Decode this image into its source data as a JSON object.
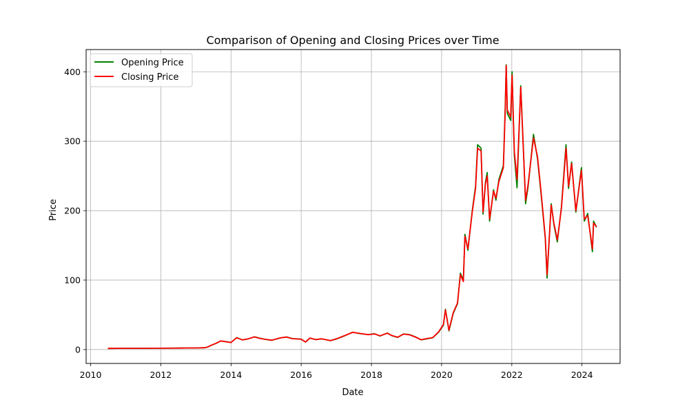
{
  "chart_data": {
    "type": "line",
    "title": "Comparison of Opening and Closing Prices over Time",
    "xlabel": "Date",
    "ylabel": "Price",
    "xlim": [
      "2009-11-15",
      "2025-02-01"
    ],
    "ylim": [
      -20,
      432
    ],
    "x_ticks": [
      "2010",
      "2012",
      "2014",
      "2016",
      "2018",
      "2020",
      "2022",
      "2024"
    ],
    "y_ticks": [
      0,
      100,
      200,
      300,
      400
    ],
    "grid": true,
    "legend": "upper-left",
    "colors": {
      "open": "#008000",
      "close": "#ff0000",
      "grid": "#b0b0b0"
    },
    "series": [
      {
        "name": "Opening Price",
        "points": [
          [
            "2010-06-29",
            1.6
          ],
          [
            "2010-12-31",
            1.8
          ],
          [
            "2011-06-30",
            1.8
          ],
          [
            "2011-12-30",
            1.9
          ],
          [
            "2012-06-29",
            2.1
          ],
          [
            "2012-12-31",
            2.3
          ],
          [
            "2013-03-31",
            2.6
          ],
          [
            "2013-05-01",
            3.5
          ],
          [
            "2013-06-15",
            6.5
          ],
          [
            "2013-08-01",
            9.0
          ],
          [
            "2013-09-15",
            12.3
          ],
          [
            "2013-11-01",
            11.5
          ],
          [
            "2014-01-01",
            10.2
          ],
          [
            "2014-03-01",
            17.2
          ],
          [
            "2014-05-01",
            13.8
          ],
          [
            "2014-07-01",
            15.5
          ],
          [
            "2014-09-01",
            18.4
          ],
          [
            "2014-11-01",
            16.2
          ],
          [
            "2015-01-01",
            14.5
          ],
          [
            "2015-03-01",
            13.4
          ],
          [
            "2015-06-01",
            16.8
          ],
          [
            "2015-08-01",
            18.2
          ],
          [
            "2015-10-01",
            15.8
          ],
          [
            "2016-01-01",
            15.0
          ],
          [
            "2016-02-15",
            10.8
          ],
          [
            "2016-04-01",
            16.5
          ],
          [
            "2016-06-01",
            14.4
          ],
          [
            "2016-08-01",
            15.4
          ],
          [
            "2016-11-01",
            12.8
          ],
          [
            "2017-01-01",
            15.2
          ],
          [
            "2017-04-01",
            20.0
          ],
          [
            "2017-06-20",
            25.0
          ],
          [
            "2017-09-01",
            23.0
          ],
          [
            "2017-12-01",
            21.5
          ],
          [
            "2018-02-01",
            22.8
          ],
          [
            "2018-04-01",
            19.5
          ],
          [
            "2018-06-15",
            23.8
          ],
          [
            "2018-08-01",
            20.0
          ],
          [
            "2018-10-01",
            17.5
          ],
          [
            "2018-12-01",
            22.5
          ],
          [
            "2019-02-01",
            21.5
          ],
          [
            "2019-04-01",
            18.5
          ],
          [
            "2019-06-01",
            14.0
          ],
          [
            "2019-08-01",
            15.5
          ],
          [
            "2019-10-01",
            17.0
          ],
          [
            "2019-12-01",
            25.0
          ],
          [
            "2020-01-20",
            35.0
          ],
          [
            "2020-02-10",
            58.0
          ],
          [
            "2020-03-18",
            27.0
          ],
          [
            "2020-05-01",
            52.0
          ],
          [
            "2020-06-15",
            66.0
          ],
          [
            "2020-07-15",
            110.0
          ],
          [
            "2020-08-15",
            100.0
          ],
          [
            "2020-08-31",
            166.0
          ],
          [
            "2020-10-01",
            143.0
          ],
          [
            "2020-11-15",
            200.0
          ],
          [
            "2020-12-20",
            235.0
          ],
          [
            "2021-01-10",
            295.0
          ],
          [
            "2021-02-15",
            290.0
          ],
          [
            "2021-03-08",
            195.0
          ],
          [
            "2021-04-01",
            240.0
          ],
          [
            "2021-04-20",
            255.0
          ],
          [
            "2021-05-15",
            185.0
          ],
          [
            "2021-06-25",
            230.0
          ],
          [
            "2021-07-20",
            215.0
          ],
          [
            "2021-08-20",
            245.0
          ],
          [
            "2021-10-05",
            265.0
          ],
          [
            "2021-10-25",
            350.0
          ],
          [
            "2021-11-04",
            410.0
          ],
          [
            "2021-11-15",
            340.0
          ],
          [
            "2021-12-20",
            330.0
          ],
          [
            "2022-01-04",
            400.0
          ],
          [
            "2022-01-27",
            280.0
          ],
          [
            "2022-02-24",
            233.0
          ],
          [
            "2022-04-04",
            380.0
          ],
          [
            "2022-05-01",
            290.0
          ],
          [
            "2022-05-24",
            210.0
          ],
          [
            "2022-06-20",
            235.0
          ],
          [
            "2022-08-15",
            310.0
          ],
          [
            "2022-09-25",
            275.0
          ],
          [
            "2022-11-01",
            225.0
          ],
          [
            "2022-12-15",
            160.0
          ],
          [
            "2023-01-03",
            103.0
          ],
          [
            "2023-02-15",
            210.0
          ],
          [
            "2023-03-15",
            180.0
          ],
          [
            "2023-04-20",
            155.0
          ],
          [
            "2023-06-01",
            205.0
          ],
          [
            "2023-07-19",
            295.0
          ],
          [
            "2023-08-15",
            232.0
          ],
          [
            "2023-09-15",
            270.0
          ],
          [
            "2023-10-30",
            198.0
          ],
          [
            "2023-12-27",
            262.0
          ],
          [
            "2024-01-25",
            185.0
          ],
          [
            "2024-03-01",
            196.0
          ],
          [
            "2024-04-19",
            141.0
          ],
          [
            "2024-05-01",
            185.0
          ],
          [
            "2024-06-01",
            176.0
          ]
        ]
      },
      {
        "name": "Closing Price",
        "points": [
          [
            "2010-06-29",
            1.6
          ],
          [
            "2010-12-31",
            1.8
          ],
          [
            "2011-06-30",
            1.8
          ],
          [
            "2011-12-30",
            1.9
          ],
          [
            "2012-06-29",
            2.1
          ],
          [
            "2012-12-31",
            2.3
          ],
          [
            "2013-03-31",
            2.6
          ],
          [
            "2013-05-01",
            3.6
          ],
          [
            "2013-06-15",
            6.6
          ],
          [
            "2013-08-01",
            9.1
          ],
          [
            "2013-09-15",
            12.4
          ],
          [
            "2013-11-01",
            11.4
          ],
          [
            "2014-01-01",
            10.1
          ],
          [
            "2014-03-01",
            17.0
          ],
          [
            "2014-05-01",
            13.9
          ],
          [
            "2014-07-01",
            15.6
          ],
          [
            "2014-09-01",
            18.2
          ],
          [
            "2014-11-01",
            16.0
          ],
          [
            "2015-01-01",
            14.6
          ],
          [
            "2015-03-01",
            13.5
          ],
          [
            "2015-06-01",
            16.9
          ],
          [
            "2015-08-01",
            18.0
          ],
          [
            "2015-10-01",
            15.7
          ],
          [
            "2016-01-01",
            14.8
          ],
          [
            "2016-02-15",
            10.9
          ],
          [
            "2016-04-01",
            16.6
          ],
          [
            "2016-06-01",
            14.3
          ],
          [
            "2016-08-01",
            15.5
          ],
          [
            "2016-11-01",
            12.9
          ],
          [
            "2017-01-01",
            15.4
          ],
          [
            "2017-04-01",
            20.2
          ],
          [
            "2017-06-20",
            24.8
          ],
          [
            "2017-09-01",
            23.2
          ],
          [
            "2017-12-01",
            21.4
          ],
          [
            "2018-02-01",
            22.5
          ],
          [
            "2018-04-01",
            19.8
          ],
          [
            "2018-06-15",
            23.5
          ],
          [
            "2018-08-01",
            20.2
          ],
          [
            "2018-10-01",
            17.8
          ],
          [
            "2018-12-01",
            22.2
          ],
          [
            "2019-02-01",
            21.2
          ],
          [
            "2019-04-01",
            18.2
          ],
          [
            "2019-06-01",
            14.2
          ],
          [
            "2019-08-01",
            15.8
          ],
          [
            "2019-10-01",
            17.2
          ],
          [
            "2019-12-01",
            25.5
          ],
          [
            "2020-01-20",
            36.0
          ],
          [
            "2020-02-10",
            57.0
          ],
          [
            "2020-03-18",
            28.0
          ],
          [
            "2020-05-01",
            53.0
          ],
          [
            "2020-06-15",
            67.0
          ],
          [
            "2020-07-15",
            108.0
          ],
          [
            "2020-08-15",
            98.0
          ],
          [
            "2020-08-31",
            163.0
          ],
          [
            "2020-10-01",
            145.0
          ],
          [
            "2020-11-15",
            198.0
          ],
          [
            "2020-12-20",
            232.0
          ],
          [
            "2021-01-10",
            290.0
          ],
          [
            "2021-02-15",
            286.0
          ],
          [
            "2021-03-08",
            198.0
          ],
          [
            "2021-04-01",
            238.0
          ],
          [
            "2021-04-20",
            250.0
          ],
          [
            "2021-05-15",
            188.0
          ],
          [
            "2021-06-25",
            228.0
          ],
          [
            "2021-07-20",
            218.0
          ],
          [
            "2021-08-20",
            242.0
          ],
          [
            "2021-10-05",
            262.0
          ],
          [
            "2021-10-25",
            345.0
          ],
          [
            "2021-11-04",
            409.0
          ],
          [
            "2021-11-15",
            345.0
          ],
          [
            "2021-12-20",
            335.0
          ],
          [
            "2022-01-04",
            395.0
          ],
          [
            "2022-01-27",
            285.0
          ],
          [
            "2022-02-24",
            245.0
          ],
          [
            "2022-04-04",
            378.0
          ],
          [
            "2022-05-01",
            288.0
          ],
          [
            "2022-05-24",
            215.0
          ],
          [
            "2022-06-20",
            238.0
          ],
          [
            "2022-08-15",
            305.0
          ],
          [
            "2022-09-25",
            278.0
          ],
          [
            "2022-11-01",
            228.0
          ],
          [
            "2022-12-15",
            162.0
          ],
          [
            "2023-01-03",
            108.0
          ],
          [
            "2023-02-15",
            208.0
          ],
          [
            "2023-03-15",
            182.0
          ],
          [
            "2023-04-20",
            158.0
          ],
          [
            "2023-06-01",
            203.0
          ],
          [
            "2023-07-19",
            290.0
          ],
          [
            "2023-08-15",
            235.0
          ],
          [
            "2023-09-15",
            268.0
          ],
          [
            "2023-10-30",
            200.0
          ],
          [
            "2023-12-27",
            258.0
          ],
          [
            "2024-01-25",
            188.0
          ],
          [
            "2024-03-01",
            193.0
          ],
          [
            "2024-04-19",
            145.0
          ],
          [
            "2024-05-01",
            182.0
          ],
          [
            "2024-06-01",
            177.0
          ]
        ]
      }
    ]
  }
}
